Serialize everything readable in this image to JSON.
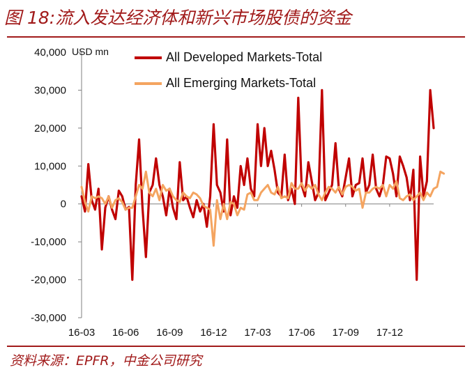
{
  "title": "图 18:流入发达经济体和新兴市场股债的资金",
  "source": "资料来源：EPFR，中金公司研究",
  "colors": {
    "accent": "#a11a1a",
    "developed": "#c00000",
    "emerging": "#f4a460"
  },
  "chart_data": {
    "type": "line",
    "unit_label": "USD mn",
    "ylim": [
      -30000,
      40000
    ],
    "y_ticks": [
      40000,
      30000,
      20000,
      10000,
      0,
      -10000,
      -20000,
      -30000
    ],
    "y_tick_labels": [
      "40,000",
      "30,000",
      "20,000",
      "10,000",
      "0",
      "-10,000",
      "-20,000",
      "-30,000"
    ],
    "x_tick_labels": [
      "16-03",
      "16-06",
      "16-09",
      "16-12",
      "17-03",
      "17-06",
      "17-09",
      "17-12"
    ],
    "x_period": "weekly, Mar 2016 – Jan 2018",
    "grid": false,
    "legend_position": "top",
    "series": [
      {
        "name": "All Developed Markets-Total",
        "color": "#c00000",
        "values": [
          2000,
          -2000,
          10500,
          1000,
          -1500,
          4000,
          -12000,
          -1000,
          2000,
          -1500,
          -4000,
          3500,
          2000,
          -1500,
          -800,
          -20000,
          5000,
          17000,
          -1000,
          -14000,
          3000,
          5000,
          12000,
          5000,
          2000,
          -3000,
          4000,
          -1000,
          -4000,
          11000,
          1000,
          2000,
          -1000,
          -3500,
          1000,
          -2000,
          0,
          -6000,
          2000,
          21000,
          5000,
          3000,
          -2000,
          17000,
          -3000,
          2000,
          -1000,
          10000,
          5000,
          12000,
          4000,
          2000,
          21000,
          10000,
          20000,
          10000,
          14000,
          9000,
          3000,
          2000,
          13000,
          1000,
          4000,
          0,
          28000,
          5000,
          2000,
          11000,
          6000,
          1000,
          3000,
          30000,
          1000,
          3000,
          5000,
          16000,
          4000,
          2000,
          7000,
          12000,
          2000,
          5000,
          5500,
          12000,
          3000,
          5000,
          13000,
          4000,
          2000,
          5000,
          12500,
          12000,
          8000,
          2000,
          12500,
          10000,
          7000,
          1000,
          9000,
          -20000,
          12500,
          2000,
          6000,
          30000,
          20000
        ]
      },
      {
        "name": "All Emerging Markets-Total",
        "color": "#f4a460",
        "values": [
          4500,
          500,
          -2000,
          2000,
          1500,
          2000,
          1500,
          0,
          2000,
          -1000,
          1000,
          1500,
          500,
          -1500,
          -1000,
          -1000,
          2000,
          5000,
          4000,
          8500,
          3000,
          2000,
          4000,
          1000,
          5000,
          3500,
          4000,
          2000,
          1000,
          500,
          3000,
          2000,
          1500,
          3000,
          2500,
          1500,
          -500,
          -1000,
          -1500,
          -11000,
          1000,
          -4000,
          0,
          -4000,
          500,
          0,
          -3000,
          -1000,
          -1500,
          2500,
          3000,
          1000,
          1000,
          3000,
          4000,
          5000,
          3000,
          2500,
          4500,
          1500,
          2000,
          1500,
          5500,
          4000,
          4000,
          5500,
          3500,
          5000,
          4000,
          5000,
          2500,
          1000,
          3000,
          4500,
          4000,
          3000,
          4500,
          2500,
          4500,
          5000,
          4500,
          3500,
          4000,
          -1000,
          3000,
          3000,
          4000,
          4500,
          4000,
          5000,
          2000,
          5000,
          4000,
          6000,
          1500,
          1000,
          2000,
          2500,
          1000,
          2000,
          3000,
          1000,
          3000,
          2000,
          4000,
          4500,
          8500,
          8000
        ]
      }
    ]
  }
}
